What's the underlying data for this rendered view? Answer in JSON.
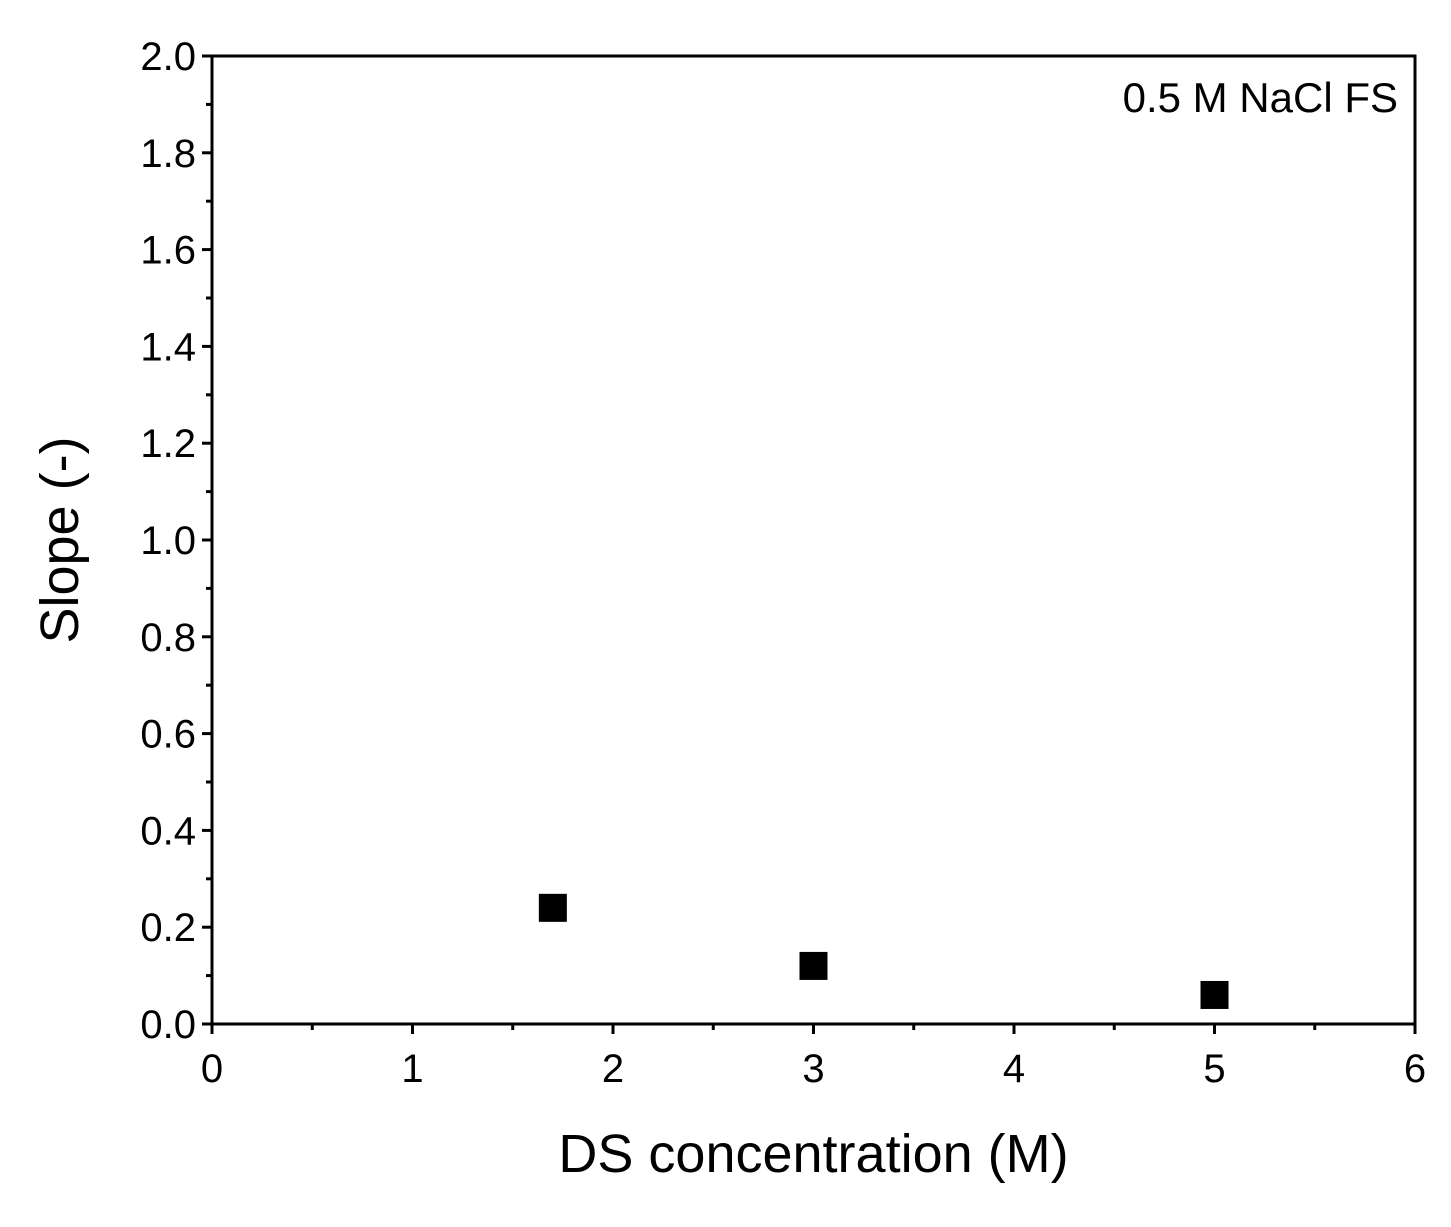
{
  "chart_data": {
    "type": "scatter",
    "title": "",
    "xlabel": "DS concentration (M)",
    "ylabel": "Slope (-)",
    "xlim": [
      0,
      6
    ],
    "ylim": [
      0,
      2.0
    ],
    "x_ticks": [
      "0",
      "1",
      "2",
      "3",
      "4",
      "5",
      "6"
    ],
    "y_ticks": [
      "0.0",
      "0.2",
      "0.4",
      "0.6",
      "0.8",
      "1.0",
      "1.2",
      "1.4",
      "1.6",
      "1.8",
      "2.0"
    ],
    "grid": false,
    "annotation": "0.5 M NaCl FS",
    "marker": "square",
    "marker_color": "#000000",
    "series": [
      {
        "x": [
          1.7,
          3.0,
          5.0
        ],
        "y": [
          0.24,
          0.12,
          0.06
        ]
      }
    ]
  }
}
